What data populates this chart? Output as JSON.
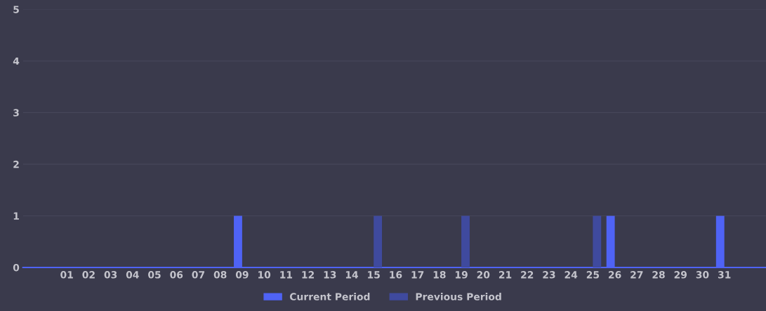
{
  "chart_data": {
    "type": "bar",
    "categories": [
      "01",
      "02",
      "03",
      "04",
      "05",
      "06",
      "07",
      "08",
      "09",
      "10",
      "11",
      "12",
      "13",
      "14",
      "15",
      "16",
      "17",
      "18",
      "19",
      "20",
      "21",
      "22",
      "23",
      "24",
      "25",
      "26",
      "27",
      "28",
      "29",
      "30",
      "31"
    ],
    "series": [
      {
        "name": "Current Period",
        "color": "#4f63f5",
        "values": [
          0,
          0,
          0,
          0,
          0,
          0,
          0,
          0,
          1,
          0,
          0,
          0,
          0,
          0,
          0,
          0,
          0,
          0,
          0,
          0,
          0,
          0,
          0,
          0,
          0,
          1,
          0,
          0,
          0,
          0,
          1
        ]
      },
      {
        "name": "Previous Period",
        "color": "#3f4a9e",
        "values": [
          0,
          0,
          0,
          0,
          0,
          0,
          0,
          0,
          0,
          0,
          0,
          0,
          0,
          0,
          1,
          0,
          0,
          0,
          1,
          0,
          0,
          0,
          0,
          0,
          1,
          0,
          0,
          0,
          0,
          0,
          0
        ]
      }
    ],
    "ylim": [
      0,
      5
    ],
    "yticks": [
      0,
      1,
      2,
      3,
      4,
      5
    ],
    "grid": "y",
    "legend": "bottom"
  }
}
